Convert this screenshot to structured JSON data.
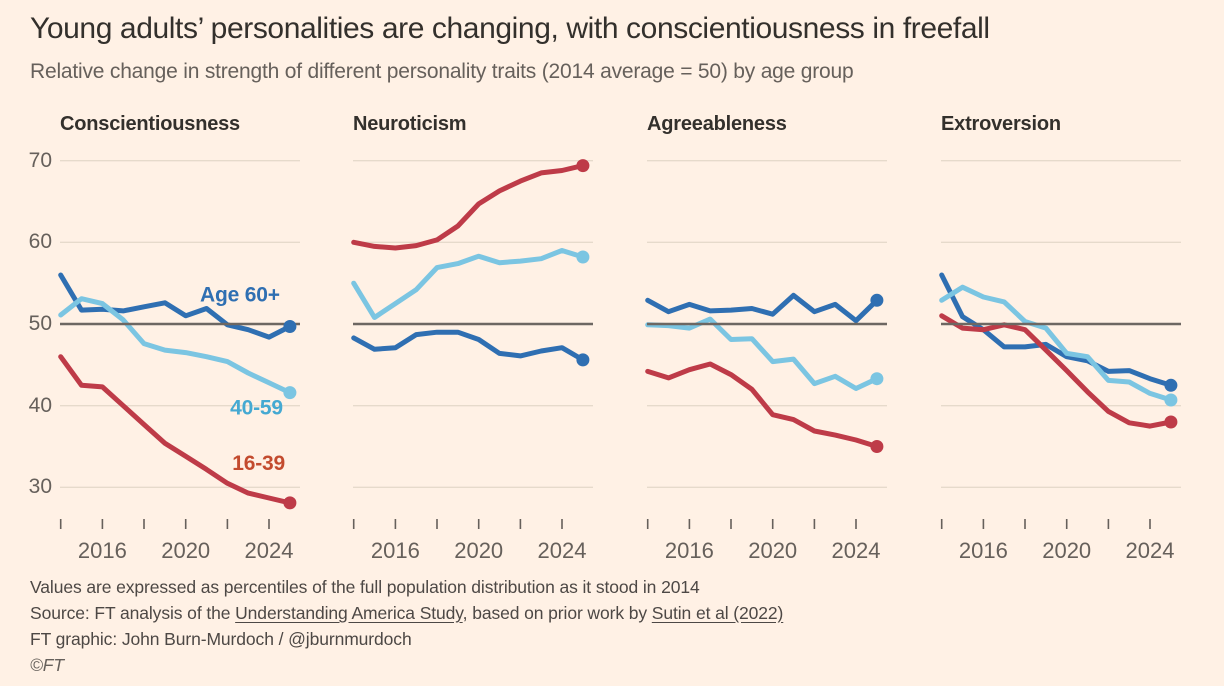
{
  "header": {
    "title": "Young adults’ personalities are changing, with conscientiousness in freefall",
    "subtitle": "Relative change in strength of different personality traits (2014 average = 50) by age group"
  },
  "colors": {
    "background": "#FFF1E5",
    "title_text": "#33302C",
    "secondary_text": "#66605B",
    "grid": "#E6DACB",
    "baseline": "#6D6762",
    "age_60": "#2F6FB2",
    "age_40_59": "#7BC5E2",
    "age_16_39": "#BE3B48",
    "label_40_59": "#45A9D2",
    "label_16_39": "#C34B2E"
  },
  "axis": {
    "yticks": [
      70,
      60,
      50,
      40,
      30
    ],
    "baseline_value": 50,
    "x_ticks": [
      2014,
      2016,
      2018,
      2020,
      2022,
      2024
    ],
    "x_tick_labels": [
      "2016",
      "2020",
      "2024"
    ],
    "x_tick_label_years": [
      2016,
      2020,
      2024
    ]
  },
  "chart_data": [
    {
      "type": "line",
      "title": "Conscientiousness",
      "x": [
        2014,
        2015,
        2016,
        2017,
        2018,
        2019,
        2020,
        2021,
        2022,
        2023,
        2024,
        2025
      ],
      "ylim": [
        30,
        70
      ],
      "baseline": 50,
      "series": [
        {
          "name": "Age 60+",
          "color_key": "age_60",
          "values": [
            56.0,
            51.7,
            51.8,
            51.6,
            52.1,
            52.6,
            51.0,
            51.9,
            49.9,
            49.3,
            48.4,
            49.7
          ]
        },
        {
          "name": "40-59",
          "color_key": "age_40_59",
          "values": [
            51.1,
            53.1,
            52.5,
            50.5,
            47.6,
            46.8,
            46.5,
            46.0,
            45.4,
            44.0,
            42.8,
            41.6
          ]
        },
        {
          "name": "16-39",
          "color_key": "age_16_39",
          "values": [
            46.0,
            42.5,
            42.3,
            40.0,
            37.7,
            35.4,
            33.8,
            32.2,
            30.5,
            29.3,
            28.7,
            28.1
          ]
        }
      ],
      "annotations": [
        {
          "text": "Age 60+",
          "x": 2022.6,
          "y": 53.6,
          "color_key": "age_60"
        },
        {
          "text": "40-59",
          "x": 2023.4,
          "y": 39.8,
          "color_key": "label_40_59"
        },
        {
          "text": "16-39",
          "x": 2023.5,
          "y": 33.0,
          "color_key": "label_16_39"
        }
      ]
    },
    {
      "type": "line",
      "title": "Neuroticism",
      "x": [
        2014,
        2015,
        2016,
        2017,
        2018,
        2019,
        2020,
        2021,
        2022,
        2023,
        2024,
        2025
      ],
      "ylim": [
        30,
        70
      ],
      "baseline": 50,
      "series": [
        {
          "name": "Age 60+",
          "color_key": "age_60",
          "values": [
            48.3,
            46.9,
            47.1,
            48.7,
            49.0,
            49.0,
            48.1,
            46.4,
            46.1,
            46.7,
            47.1,
            45.6
          ]
        },
        {
          "name": "40-59",
          "color_key": "age_40_59",
          "values": [
            55.0,
            50.8,
            52.5,
            54.2,
            56.9,
            57.4,
            58.3,
            57.5,
            57.7,
            58.0,
            59.0,
            58.2
          ]
        },
        {
          "name": "16-39",
          "color_key": "age_16_39",
          "values": [
            60.0,
            59.5,
            59.3,
            59.6,
            60.3,
            62.0,
            64.7,
            66.3,
            67.5,
            68.5,
            68.8,
            69.4
          ]
        }
      ],
      "annotations": []
    },
    {
      "type": "line",
      "title": "Agreeableness",
      "x": [
        2014,
        2015,
        2016,
        2017,
        2018,
        2019,
        2020,
        2021,
        2022,
        2023,
        2024,
        2025
      ],
      "ylim": [
        30,
        70
      ],
      "baseline": 50,
      "series": [
        {
          "name": "Age 60+",
          "color_key": "age_60",
          "values": [
            52.9,
            51.5,
            52.4,
            51.6,
            51.7,
            51.9,
            51.2,
            53.5,
            51.5,
            52.4,
            50.4,
            52.9
          ]
        },
        {
          "name": "40-59",
          "color_key": "age_40_59",
          "values": [
            49.9,
            49.8,
            49.5,
            50.6,
            48.1,
            48.2,
            45.4,
            45.7,
            42.7,
            43.6,
            42.1,
            43.3
          ]
        },
        {
          "name": "16-39",
          "color_key": "age_16_39",
          "values": [
            44.2,
            43.4,
            44.4,
            45.1,
            43.8,
            42.0,
            38.9,
            38.3,
            36.9,
            36.4,
            35.8,
            35.0
          ]
        }
      ],
      "annotations": []
    },
    {
      "type": "line",
      "title": "Extroversion",
      "x": [
        2014,
        2015,
        2016,
        2017,
        2018,
        2019,
        2020,
        2021,
        2022,
        2023,
        2024,
        2025
      ],
      "ylim": [
        30,
        70
      ],
      "baseline": 50,
      "series": [
        {
          "name": "Age 60+",
          "color_key": "age_60",
          "values": [
            56.0,
            50.9,
            49.3,
            47.2,
            47.2,
            47.5,
            46.0,
            45.5,
            44.2,
            44.3,
            43.3,
            42.5
          ]
        },
        {
          "name": "40-59",
          "color_key": "age_40_59",
          "values": [
            52.9,
            54.5,
            53.3,
            52.7,
            50.3,
            49.5,
            46.4,
            46.0,
            43.1,
            42.9,
            41.5,
            40.7
          ]
        },
        {
          "name": "16-39",
          "color_key": "age_16_39",
          "values": [
            51.0,
            49.5,
            49.3,
            49.9,
            49.3,
            46.8,
            44.3,
            41.7,
            39.3,
            37.9,
            37.5,
            38.0
          ]
        }
      ],
      "annotations": []
    }
  ],
  "footer": {
    "note": "Values are expressed as percentiles of the full population distribution as it stood in 2014",
    "source_prefix": "Source: FT analysis of the ",
    "source_link1": "Understanding America Study",
    "source_mid": ", based on prior work by ",
    "source_link2": "Sutin et al (2022)",
    "credit": "FT graphic: John Burn-Murdoch / @jburnmurdoch",
    "copyright": "©FT"
  }
}
